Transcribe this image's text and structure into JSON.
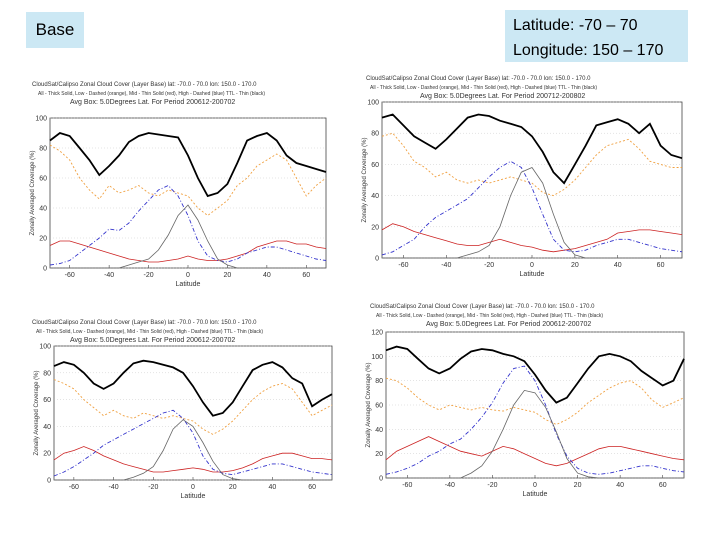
{
  "labels": {
    "base": "Base",
    "latitude": "Latitude:   -70 – 70",
    "longitude": "Longitude: 150 – 170"
  },
  "colors": {
    "all": "#000000",
    "low": "#f0a040",
    "mid": "#cc2222",
    "high": "#3333cc",
    "tti": "#666666"
  },
  "chart_data": [
    {
      "type": "line",
      "title": "CloudSat/Calipso Zonal Cloud Cover (Layer Base)  lat: -70.0 - 70.0  lon: 150.0 - 170.0",
      "legend": "All - Thick Solid, Low - Dashed (orange), Mid - Thin Solid (red), High - Dashed (blue) TTL - Thin (black)",
      "subtitle": "Avg Box: 5.0Degrees Lat. For Period 200612-200702",
      "xlabel": "Latitude",
      "ylabel": "Zonally Averaged Coverage (%)",
      "xlim": [
        -70,
        70
      ],
      "ylim": [
        0,
        100
      ],
      "xticks": [
        -60,
        -40,
        -20,
        0,
        20,
        40,
        60
      ],
      "xtick_labels": [
        "-60",
        "-40",
        "-20",
        "0",
        "20",
        "40",
        "60"
      ],
      "yticks": [
        0,
        20,
        40,
        60,
        80,
        100
      ],
      "ytick_labels": [
        "0",
        "20",
        "40",
        "60",
        "80",
        "100"
      ],
      "x": [
        -70,
        -65,
        -60,
        -55,
        -50,
        -45,
        -40,
        -35,
        -30,
        -25,
        -20,
        -15,
        -10,
        -5,
        0,
        5,
        10,
        15,
        20,
        25,
        30,
        35,
        40,
        45,
        50,
        55,
        60,
        65,
        70
      ],
      "series": [
        {
          "name": "All",
          "values": [
            85,
            90,
            88,
            80,
            72,
            62,
            68,
            75,
            84,
            88,
            90,
            89,
            88,
            87,
            75,
            60,
            48,
            50,
            56,
            70,
            85,
            88,
            90,
            85,
            75,
            70,
            68,
            66,
            64
          ]
        },
        {
          "name": "Low",
          "values": [
            82,
            78,
            72,
            60,
            52,
            46,
            55,
            50,
            52,
            55,
            50,
            48,
            52,
            50,
            48,
            40,
            35,
            40,
            45,
            55,
            60,
            68,
            72,
            76,
            72,
            60,
            48,
            55,
            60
          ]
        },
        {
          "name": "Mid",
          "values": [
            15,
            18,
            18,
            16,
            14,
            12,
            10,
            8,
            6,
            5,
            4,
            4,
            5,
            6,
            8,
            6,
            5,
            5,
            6,
            8,
            10,
            14,
            16,
            18,
            18,
            16,
            16,
            14,
            13
          ]
        },
        {
          "name": "High",
          "values": [
            2,
            3,
            5,
            10,
            15,
            20,
            26,
            25,
            30,
            38,
            45,
            52,
            55,
            48,
            35,
            18,
            8,
            5,
            4,
            6,
            10,
            12,
            14,
            14,
            12,
            10,
            8,
            6,
            5
          ]
        },
        {
          "name": "TTL",
          "values": [
            0,
            0,
            0,
            0,
            0,
            0,
            0,
            0,
            2,
            4,
            6,
            12,
            22,
            35,
            42,
            32,
            18,
            6,
            2,
            0,
            0,
            0,
            0,
            0,
            0,
            0,
            0,
            0,
            0
          ]
        }
      ]
    },
    {
      "type": "line",
      "title": "CloudSat/Calipso Zonal Cloud Cover (Layer Base)  lat: -70.0 - 70.0  lon: 150.0 - 170.0",
      "legend": "All - Thick Solid, Low - Dashed (orange), Mid - Thin Solid (red), High - Dashed (blue) TTL - Thin (black)",
      "subtitle": "Avg Box: 5.0Degrees Lat. For Period 200712-200802",
      "xlabel": "Latitude",
      "ylabel": "Zonally Averaged Coverage (%)",
      "xlim": [
        -70,
        70
      ],
      "ylim": [
        0,
        100
      ],
      "xticks": [
        -60,
        -40,
        -20,
        0,
        20,
        40,
        60
      ],
      "xtick_labels": [
        "-60",
        "-40",
        "-20",
        "0",
        "20",
        "40",
        "60"
      ],
      "yticks": [
        0,
        20,
        40,
        60,
        80,
        100
      ],
      "ytick_labels": [
        "0",
        "20",
        "40",
        "60",
        "80",
        "100"
      ],
      "x": [
        -70,
        -65,
        -60,
        -55,
        -50,
        -45,
        -40,
        -35,
        -30,
        -25,
        -20,
        -15,
        -10,
        -5,
        0,
        5,
        10,
        15,
        20,
        25,
        30,
        35,
        40,
        45,
        50,
        55,
        60,
        65,
        70
      ],
      "series": [
        {
          "name": "All",
          "values": [
            90,
            92,
            85,
            78,
            74,
            70,
            76,
            83,
            90,
            92,
            91,
            88,
            86,
            84,
            78,
            68,
            55,
            48,
            60,
            72,
            85,
            87,
            89,
            86,
            80,
            86,
            72,
            66,
            64
          ]
        },
        {
          "name": "Low",
          "values": [
            78,
            80,
            72,
            62,
            58,
            52,
            55,
            50,
            48,
            50,
            48,
            50,
            52,
            50,
            48,
            42,
            40,
            44,
            50,
            58,
            66,
            72,
            74,
            76,
            70,
            62,
            60,
            58,
            58
          ]
        },
        {
          "name": "Mid",
          "values": [
            18,
            22,
            20,
            17,
            15,
            13,
            11,
            9,
            8,
            8,
            10,
            12,
            10,
            8,
            7,
            5,
            4,
            5,
            6,
            8,
            10,
            12,
            16,
            17,
            18,
            18,
            17,
            16,
            15
          ]
        },
        {
          "name": "High",
          "values": [
            2,
            4,
            8,
            12,
            20,
            26,
            30,
            34,
            38,
            45,
            52,
            58,
            62,
            58,
            45,
            28,
            12,
            5,
            4,
            5,
            8,
            10,
            12,
            12,
            10,
            8,
            6,
            5,
            4
          ]
        },
        {
          "name": "TTL",
          "values": [
            0,
            0,
            0,
            0,
            0,
            0,
            0,
            0,
            2,
            4,
            8,
            20,
            40,
            55,
            58,
            48,
            28,
            10,
            2,
            0,
            0,
            0,
            0,
            0,
            0,
            0,
            0,
            0,
            0
          ]
        }
      ]
    },
    {
      "type": "line",
      "title": "CloudSat/Calipso Zonal Cloud Cover (Layer Base)  lat: -70.0 - 70.0  lon: 150.0 - 170.0",
      "legend": "All - Thick Solid, Low - Dashed (orange), Mid - Thin Solid (red), High - Dashed (blue) TTL - Thin (black)",
      "subtitle": "Avg Box: 5.0Degrees Lat. For Period 200612-200702",
      "xlabel": "Latitude",
      "ylabel": "Zonally Averaged Coverage (%)",
      "xlim": [
        -70,
        70
      ],
      "ylim": [
        0,
        100
      ],
      "xticks": [
        -60,
        -40,
        -20,
        0,
        20,
        40,
        60
      ],
      "xtick_labels": [
        "-60",
        "-40",
        "-20",
        "0",
        "20",
        "40",
        "60"
      ],
      "yticks": [
        0,
        20,
        40,
        60,
        80,
        100
      ],
      "ytick_labels": [
        "0",
        "20",
        "40",
        "60",
        "80",
        "100"
      ],
      "x": [
        -70,
        -65,
        -60,
        -55,
        -50,
        -45,
        -40,
        -35,
        -30,
        -25,
        -20,
        -15,
        -10,
        -5,
        0,
        5,
        10,
        15,
        20,
        25,
        30,
        35,
        40,
        45,
        50,
        55,
        60,
        65,
        70
      ],
      "series": [
        {
          "name": "All",
          "values": [
            85,
            88,
            86,
            80,
            72,
            68,
            72,
            80,
            87,
            89,
            88,
            86,
            84,
            80,
            70,
            58,
            48,
            50,
            58,
            70,
            82,
            86,
            88,
            84,
            76,
            72,
            55,
            60,
            64
          ]
        },
        {
          "name": "Low",
          "values": [
            75,
            72,
            68,
            60,
            54,
            48,
            52,
            48,
            46,
            50,
            48,
            46,
            48,
            46,
            44,
            38,
            34,
            38,
            44,
            52,
            60,
            66,
            70,
            72,
            68,
            58,
            48,
            52,
            56
          ]
        },
        {
          "name": "Mid",
          "values": [
            15,
            20,
            22,
            25,
            22,
            18,
            15,
            12,
            10,
            8,
            6,
            6,
            7,
            8,
            9,
            8,
            6,
            6,
            7,
            9,
            12,
            16,
            18,
            20,
            20,
            18,
            16,
            16,
            15
          ]
        },
        {
          "name": "High",
          "values": [
            3,
            6,
            10,
            15,
            20,
            26,
            30,
            34,
            38,
            42,
            46,
            50,
            52,
            46,
            35,
            18,
            8,
            5,
            4,
            6,
            8,
            10,
            12,
            12,
            10,
            8,
            6,
            5,
            4
          ]
        },
        {
          "name": "TTL",
          "values": [
            0,
            0,
            0,
            0,
            0,
            0,
            0,
            0,
            2,
            5,
            10,
            22,
            38,
            45,
            40,
            28,
            14,
            4,
            1,
            0,
            0,
            0,
            0,
            0,
            0,
            0,
            0,
            0,
            0
          ]
        }
      ]
    },
    {
      "type": "line",
      "title": "CloudSat/Calipso Zonal Cloud Cover (Layer Base)  lat: -70.0 - 70.0  lon: 150.0 - 170.0",
      "legend": "All - Thick Solid, Low - Dashed (orange), Mid - Thin Solid (red), High - Dashed (blue) TTL - Thin (black)",
      "subtitle": "Avg Box: 5.0Degrees Lat. For Period 200612-200702",
      "xlabel": "Latitude",
      "ylabel": "Zonally Averaged Coverage (%)",
      "xlim": [
        -70,
        70
      ],
      "ylim": [
        0,
        120
      ],
      "xticks": [
        -60,
        -40,
        -20,
        0,
        20,
        40,
        60
      ],
      "xtick_labels": [
        "-60",
        "-40",
        "-20",
        "0",
        "20",
        "40",
        "60"
      ],
      "yticks": [
        0,
        20,
        40,
        60,
        80,
        100,
        120
      ],
      "ytick_labels": [
        "0",
        "20",
        "40",
        "60",
        "80",
        "100",
        "120"
      ],
      "x": [
        -70,
        -65,
        -60,
        -55,
        -50,
        -45,
        -40,
        -35,
        -30,
        -25,
        -20,
        -15,
        -10,
        -5,
        0,
        5,
        10,
        15,
        20,
        25,
        30,
        35,
        40,
        45,
        50,
        55,
        60,
        65,
        70
      ],
      "series": [
        {
          "name": "All",
          "values": [
            105,
            108,
            106,
            98,
            90,
            86,
            90,
            98,
            104,
            106,
            105,
            102,
            100,
            96,
            85,
            72,
            62,
            66,
            78,
            90,
            100,
            102,
            100,
            96,
            88,
            82,
            76,
            80,
            98
          ]
        },
        {
          "name": "Low",
          "values": [
            82,
            80,
            74,
            66,
            60,
            56,
            60,
            58,
            56,
            58,
            56,
            55,
            58,
            56,
            54,
            48,
            44,
            48,
            54,
            62,
            68,
            74,
            78,
            80,
            74,
            64,
            58,
            62,
            66
          ]
        },
        {
          "name": "Mid",
          "values": [
            15,
            22,
            26,
            30,
            34,
            30,
            26,
            22,
            20,
            18,
            22,
            26,
            24,
            20,
            16,
            12,
            10,
            12,
            16,
            20,
            24,
            26,
            26,
            24,
            22,
            20,
            18,
            16,
            15
          ]
        },
        {
          "name": "High",
          "values": [
            3,
            5,
            8,
            12,
            18,
            22,
            28,
            32,
            40,
            50,
            62,
            78,
            90,
            92,
            80,
            60,
            36,
            18,
            8,
            4,
            3,
            4,
            6,
            8,
            10,
            10,
            8,
            6,
            5
          ]
        },
        {
          "name": "TTL",
          "values": [
            0,
            0,
            0,
            0,
            0,
            0,
            0,
            0,
            4,
            10,
            22,
            40,
            60,
            72,
            70,
            58,
            38,
            16,
            4,
            1,
            0,
            0,
            0,
            0,
            0,
            0,
            0,
            0,
            0
          ]
        }
      ]
    }
  ]
}
